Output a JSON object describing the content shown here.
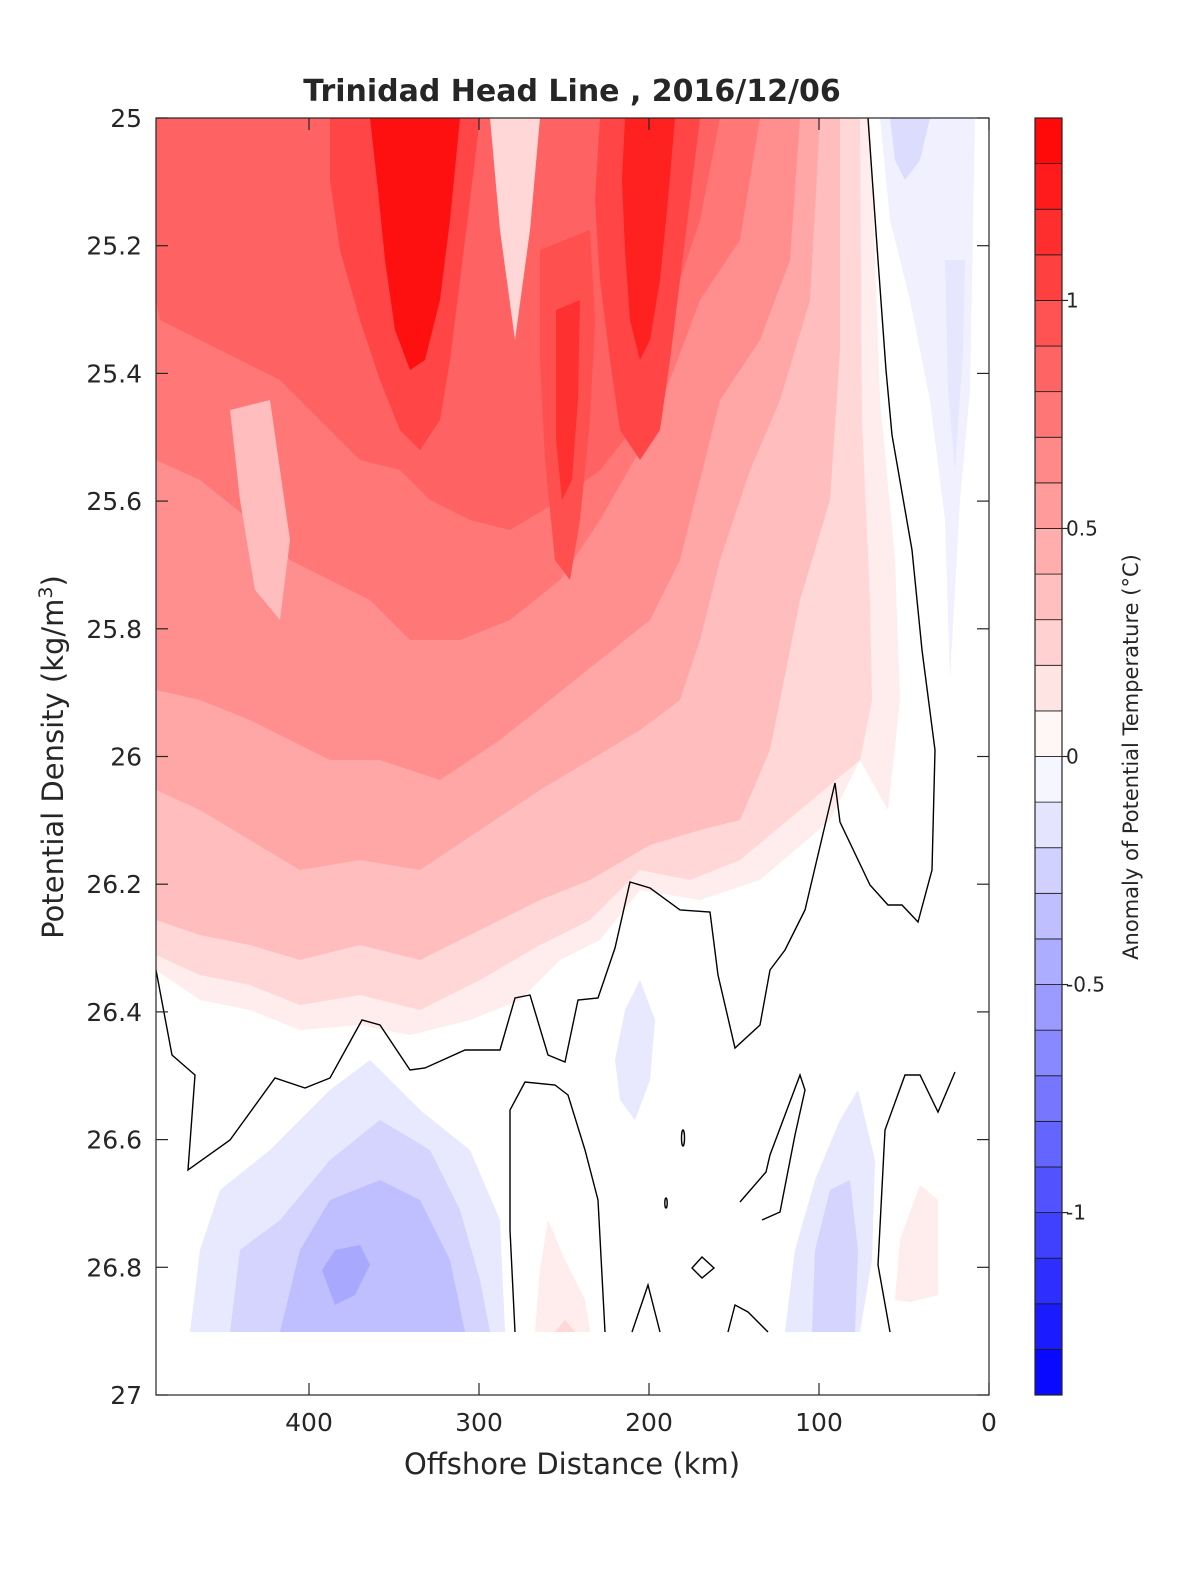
{
  "chart_data": {
    "type": "heatmap",
    "title": "Trinidad Head Line , 2016/12/06",
    "xlabel": "Offshore Distance (km)",
    "ylabel": "Potential Density (kg/m",
    "ylabel_sup": "3",
    "ylabel_close": ")",
    "colorbar_label": "Anomaly of Potential Temperature (°C)",
    "x_reversed": true,
    "y_reversed": true,
    "xlim": [
      0,
      490
    ],
    "ylim": [
      25,
      27
    ],
    "x_ticks": [
      400,
      300,
      200,
      100,
      0
    ],
    "y_ticks": [
      25,
      25.2,
      25.4,
      25.6,
      25.8,
      26,
      26.2,
      26.4,
      26.6,
      26.8,
      27
    ],
    "y_tick_labels": [
      "25",
      "25.2",
      "25.4",
      "25.6",
      "25.8",
      "26",
      "26.2",
      "26.4",
      "26.6",
      "26.8",
      "27"
    ],
    "colorbar_range": [
      -1.4,
      1.4
    ],
    "colorbar_step": 0.1,
    "colorbar_ticks": [
      1,
      0.5,
      0,
      -0.5,
      -1
    ],
    "colorbar_tick_labels": [
      "1",
      "0.5",
      "0",
      "-0.5",
      "-1"
    ],
    "colormap": {
      "negative_end": "#0000ff",
      "zero": "#ffffff",
      "positive_end": "#ff0000"
    },
    "zero_contour_color": "#000000",
    "data_bottom_density": 26.9,
    "anomaly_features": [
      {
        "x_km": 340,
        "density": 25.2,
        "value": 1.35
      },
      {
        "x_km": 205,
        "density": 25.3,
        "value": 1.15
      },
      {
        "x_km": 250,
        "density": 25.5,
        "value": 0.95
      },
      {
        "x_km": 460,
        "density": 25.3,
        "value": 0.75
      },
      {
        "x_km": 375,
        "density": 26.8,
        "value": -0.4
      },
      {
        "x_km": 25,
        "density": 25.3,
        "value": -0.1
      },
      {
        "x_km": 95,
        "density": 26.8,
        "value": -0.25
      },
      {
        "x_km": 40,
        "density": 26.8,
        "value": 0.1
      },
      {
        "x_km": 255,
        "density": 26.85,
        "value": 0.15
      }
    ]
  }
}
